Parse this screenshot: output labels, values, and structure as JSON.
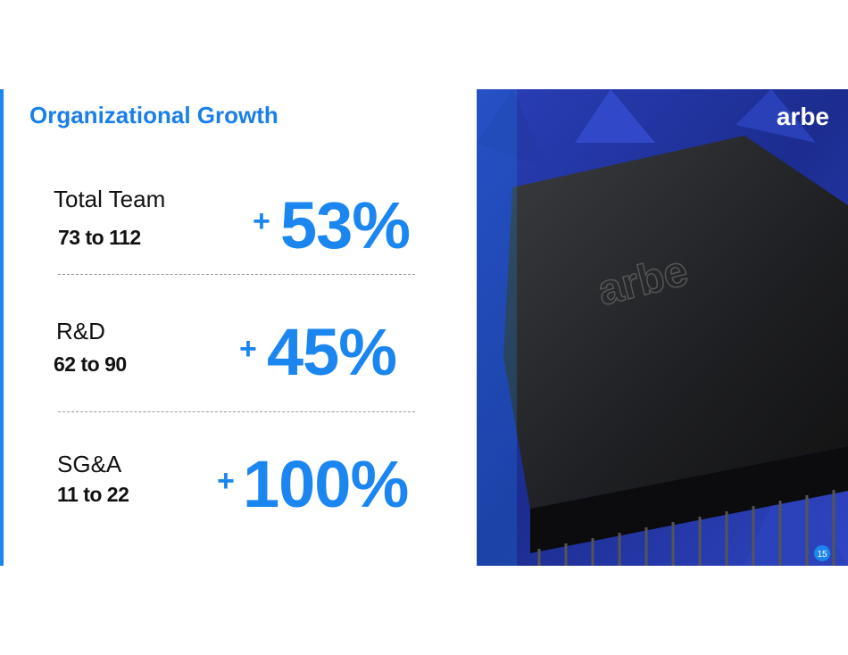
{
  "header": {
    "title": "Organizational Growth"
  },
  "metrics": [
    {
      "label": "Total Team",
      "range": "73 to 112",
      "sign": "+",
      "change": "53%"
    },
    {
      "label": "R&D",
      "range": "62 to 90",
      "sign": "+",
      "change": "45%"
    },
    {
      "label": "SG&A",
      "range": "11 to 22",
      "sign": "+",
      "change": "100%"
    }
  ],
  "image": {
    "logo": "arbe",
    "device_label": "arbe"
  },
  "footer": {
    "page_number": "15"
  }
}
